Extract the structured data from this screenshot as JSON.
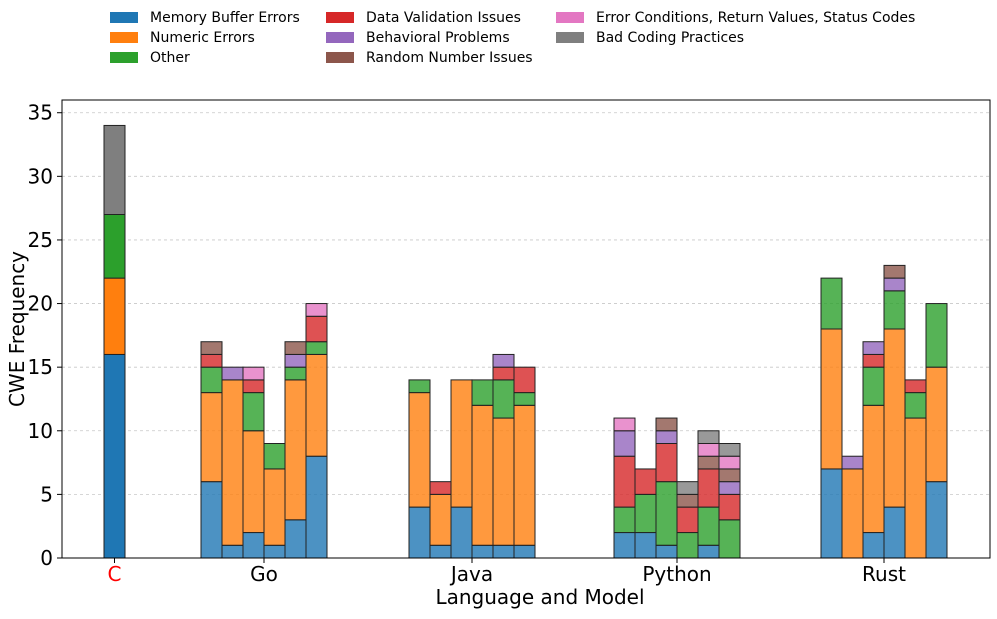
{
  "chart_data": {
    "type": "bar",
    "stacked": true,
    "xlabel": "Language and Model",
    "ylabel": "CWE Frequency",
    "ylim": [
      0,
      36
    ],
    "yticks": [
      0,
      5,
      10,
      15,
      20,
      25,
      30,
      35
    ],
    "grid": "horizontal dashed",
    "legend_position": "top",
    "categories": [
      "Memory Buffer Errors",
      "Numeric Errors",
      "Other",
      "Data Validation Issues",
      "Behavioral Problems",
      "Random Number Issues",
      "Error Conditions, Return Values, Status Codes",
      "Bad Coding Practices"
    ],
    "colors": [
      "#1f77b4",
      "#ff7f0e",
      "#2ca02c",
      "#d62728",
      "#9467bd",
      "#8c564b",
      "#e377c2",
      "#7f7f7f"
    ],
    "legend_order": [
      0,
      1,
      2,
      3,
      4,
      5,
      6,
      7
    ],
    "groups": [
      {
        "label": "C",
        "label_color": "#ff0000",
        "bars": [
          [
            16,
            6,
            5,
            0,
            0,
            0,
            0,
            7
          ]
        ]
      },
      {
        "label": "Go",
        "label_color": "#000000",
        "bars": [
          [
            6,
            7,
            2,
            1,
            0,
            1,
            0,
            0
          ],
          [
            1,
            13,
            0,
            0,
            1,
            0,
            0,
            0
          ],
          [
            2,
            8,
            3,
            1,
            0,
            0,
            1,
            0
          ],
          [
            1,
            6,
            2,
            0,
            0,
            0,
            0,
            0
          ],
          [
            3,
            11,
            1,
            0,
            1,
            1,
            0,
            0
          ],
          [
            8,
            8,
            1,
            2,
            0,
            0,
            1,
            0
          ]
        ]
      },
      {
        "label": "Java",
        "label_color": "#000000",
        "bars": [
          [
            4,
            9,
            1,
            0,
            0,
            0,
            0,
            0
          ],
          [
            1,
            4,
            0,
            1,
            0,
            0,
            0,
            0
          ],
          [
            4,
            10,
            0,
            0,
            0,
            0,
            0,
            0
          ],
          [
            1,
            11,
            2,
            0,
            0,
            0,
            0,
            0
          ],
          [
            1,
            10,
            3,
            1,
            1,
            0,
            0,
            0
          ],
          [
            1,
            11,
            1,
            2,
            0,
            0,
            0,
            0
          ]
        ]
      },
      {
        "label": "Python",
        "label_color": "#000000",
        "bars": [
          [
            2,
            0,
            2,
            4,
            2,
            0,
            1,
            0
          ],
          [
            2,
            0,
            3,
            2,
            0,
            0,
            0,
            0
          ],
          [
            1,
            0,
            5,
            3,
            1,
            1,
            0,
            0
          ],
          [
            0,
            0,
            2,
            2,
            0,
            1,
            0,
            1
          ],
          [
            1,
            0,
            3,
            3,
            0,
            1,
            1,
            1
          ],
          [
            0,
            0,
            3,
            2,
            1,
            1,
            1,
            1
          ]
        ]
      },
      {
        "label": "Rust",
        "label_color": "#000000",
        "bars": [
          [
            7,
            11,
            4,
            0,
            0,
            0,
            0,
            0
          ],
          [
            0,
            7,
            0,
            0,
            1,
            0,
            0,
            0
          ],
          [
            2,
            10,
            3,
            1,
            1,
            0,
            0,
            0
          ],
          [
            4,
            14,
            3,
            0,
            1,
            1,
            0,
            0
          ],
          [
            0,
            11,
            2,
            1,
            0,
            0,
            0,
            0
          ],
          [
            6,
            9,
            5,
            0,
            0,
            0,
            0,
            0
          ]
        ]
      }
    ]
  }
}
